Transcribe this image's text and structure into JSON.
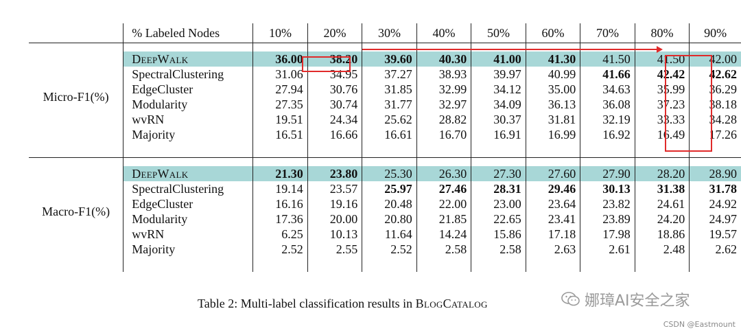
{
  "table": {
    "header": {
      "label": "% Labeled Nodes",
      "columns": [
        "10%",
        "20%",
        "30%",
        "40%",
        "50%",
        "60%",
        "70%",
        "80%",
        "90%"
      ]
    },
    "micro": {
      "metric": "Micro-F1(%)",
      "rows": [
        {
          "method": "DeepWalk",
          "values": [
            "36.00",
            "38.20",
            "39.60",
            "40.30",
            "41.00",
            "41.30",
            "41.50",
            "41.50",
            "42.00"
          ],
          "bold": [
            true,
            true,
            true,
            true,
            true,
            true,
            false,
            false,
            false
          ]
        },
        {
          "method": "SpectralClustering",
          "values": [
            "31.06",
            "34.95",
            "37.27",
            "38.93",
            "39.97",
            "40.99",
            "41.66",
            "42.42",
            "42.62"
          ],
          "bold": [
            false,
            false,
            false,
            false,
            false,
            false,
            true,
            true,
            true
          ]
        },
        {
          "method": "EdgeCluster",
          "values": [
            "27.94",
            "30.76",
            "31.85",
            "32.99",
            "34.12",
            "35.00",
            "34.63",
            "35.99",
            "36.29"
          ],
          "bold": [
            false,
            false,
            false,
            false,
            false,
            false,
            false,
            false,
            false
          ]
        },
        {
          "method": "Modularity",
          "values": [
            "27.35",
            "30.74",
            "31.77",
            "32.97",
            "34.09",
            "36.13",
            "36.08",
            "37.23",
            "38.18"
          ],
          "bold": [
            false,
            false,
            false,
            false,
            false,
            false,
            false,
            false,
            false
          ]
        },
        {
          "method": "wvRN",
          "values": [
            "19.51",
            "24.34",
            "25.62",
            "28.82",
            "30.37",
            "31.81",
            "32.19",
            "33.33",
            "34.28"
          ],
          "bold": [
            false,
            false,
            false,
            false,
            false,
            false,
            false,
            false,
            false
          ]
        },
        {
          "method": "Majority",
          "values": [
            "16.51",
            "16.66",
            "16.61",
            "16.70",
            "16.91",
            "16.99",
            "16.92",
            "16.49",
            "17.26"
          ],
          "bold": [
            false,
            false,
            false,
            false,
            false,
            false,
            false,
            false,
            false
          ]
        }
      ]
    },
    "macro": {
      "metric": "Macro-F1(%)",
      "rows": [
        {
          "method": "DeepWalk",
          "values": [
            "21.30",
            "23.80",
            "25.30",
            "26.30",
            "27.30",
            "27.60",
            "27.90",
            "28.20",
            "28.90"
          ],
          "bold": [
            true,
            true,
            false,
            false,
            false,
            false,
            false,
            false,
            false
          ]
        },
        {
          "method": "SpectralClustering",
          "values": [
            "19.14",
            "23.57",
            "25.97",
            "27.46",
            "28.31",
            "29.46",
            "30.13",
            "31.38",
            "31.78"
          ],
          "bold": [
            false,
            false,
            true,
            true,
            true,
            true,
            true,
            true,
            true
          ]
        },
        {
          "method": "EdgeCluster",
          "values": [
            "16.16",
            "19.16",
            "20.48",
            "22.00",
            "23.00",
            "23.64",
            "23.82",
            "24.61",
            "24.92"
          ],
          "bold": [
            false,
            false,
            false,
            false,
            false,
            false,
            false,
            false,
            false
          ]
        },
        {
          "method": "Modularity",
          "values": [
            "17.36",
            "20.00",
            "20.80",
            "21.85",
            "22.65",
            "23.41",
            "23.89",
            "24.20",
            "24.97"
          ],
          "bold": [
            false,
            false,
            false,
            false,
            false,
            false,
            false,
            false,
            false
          ]
        },
        {
          "method": "wvRN",
          "values": [
            "6.25",
            "10.13",
            "11.64",
            "14.24",
            "15.86",
            "17.18",
            "17.98",
            "18.86",
            "19.57"
          ],
          "bold": [
            false,
            false,
            false,
            false,
            false,
            false,
            false,
            false,
            false
          ]
        },
        {
          "method": "Majority",
          "values": [
            "2.52",
            "2.55",
            "2.52",
            "2.58",
            "2.58",
            "2.63",
            "2.61",
            "2.48",
            "2.62"
          ],
          "bold": [
            false,
            false,
            false,
            false,
            false,
            false,
            false,
            false,
            false
          ]
        }
      ]
    }
  },
  "highlight_color": "#a8d7d7",
  "annotation_color": "#e02a2a",
  "caption": {
    "prefix": "Table 2: Multi-label classification results in ",
    "dataset": "BlogCatalog"
  },
  "watermark": {
    "icon": "wechat-icon",
    "text": "娜璋AI安全之家"
  },
  "credit": "CSDN @Eastmount"
}
